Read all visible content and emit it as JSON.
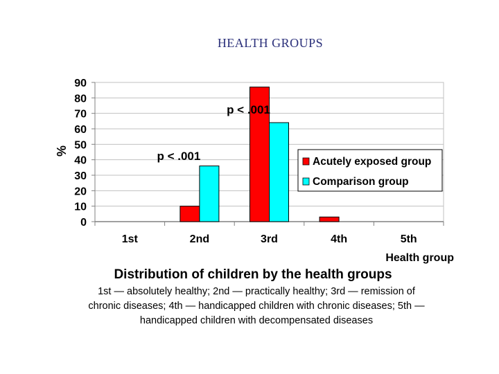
{
  "slide": {
    "title": "HEALTH GROUPS"
  },
  "chart_data": {
    "type": "bar",
    "title": "Distribution of children by the health groups",
    "xlabel": "Health group",
    "ylabel": "%",
    "ylim": [
      0,
      90
    ],
    "yticks": [
      0,
      10,
      20,
      30,
      40,
      50,
      60,
      70,
      80,
      90
    ],
    "grid": true,
    "categories": [
      "1st",
      "2nd",
      "3rd",
      "4th",
      "5th"
    ],
    "series": [
      {
        "name": "Acutely exposed group",
        "color": "#ff0000",
        "values": [
          0,
          10,
          87,
          3,
          0
        ]
      },
      {
        "name": "Comparison group",
        "color": "#00ffff",
        "values": [
          0,
          36,
          64,
          0,
          0
        ]
      }
    ],
    "legend_position": "right",
    "annotations": [
      {
        "text": "p < .001",
        "category": "2nd",
        "y": 43
      },
      {
        "text": "p < .001",
        "category": "3rd",
        "y": 73
      }
    ]
  },
  "description": {
    "lines": [
      "1st  — absolutely healthy; 2nd  — practically healthy; 3rd  — remission of",
      "chronic diseases; 4th  — handicapped children with chronic diseases; 5th  —",
      "handicapped children with decompensated diseases"
    ]
  }
}
